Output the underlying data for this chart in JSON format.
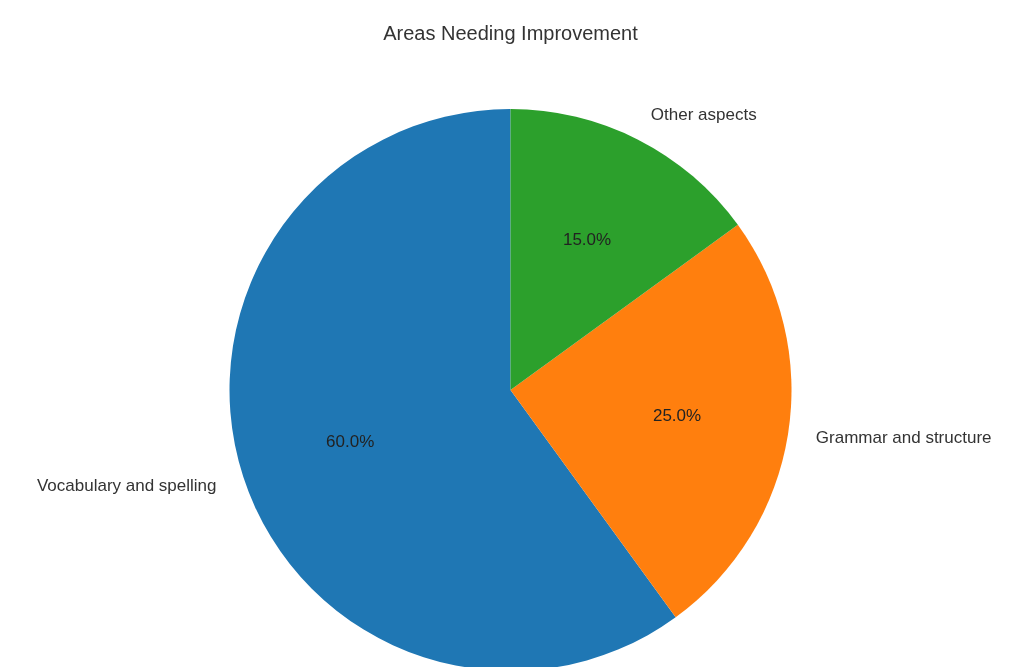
{
  "chart_data": {
    "type": "pie",
    "title": "Areas Needing Improvement",
    "categories": [
      "Vocabulary and spelling",
      "Grammar and structure",
      "Other aspects"
    ],
    "values": [
      60,
      25,
      15
    ],
    "colors": [
      "#1f77b4",
      "#ff7f0e",
      "#2ca02c"
    ],
    "value_labels": [
      "60.0%",
      "25.0%",
      "15.0%"
    ],
    "legend": false
  }
}
